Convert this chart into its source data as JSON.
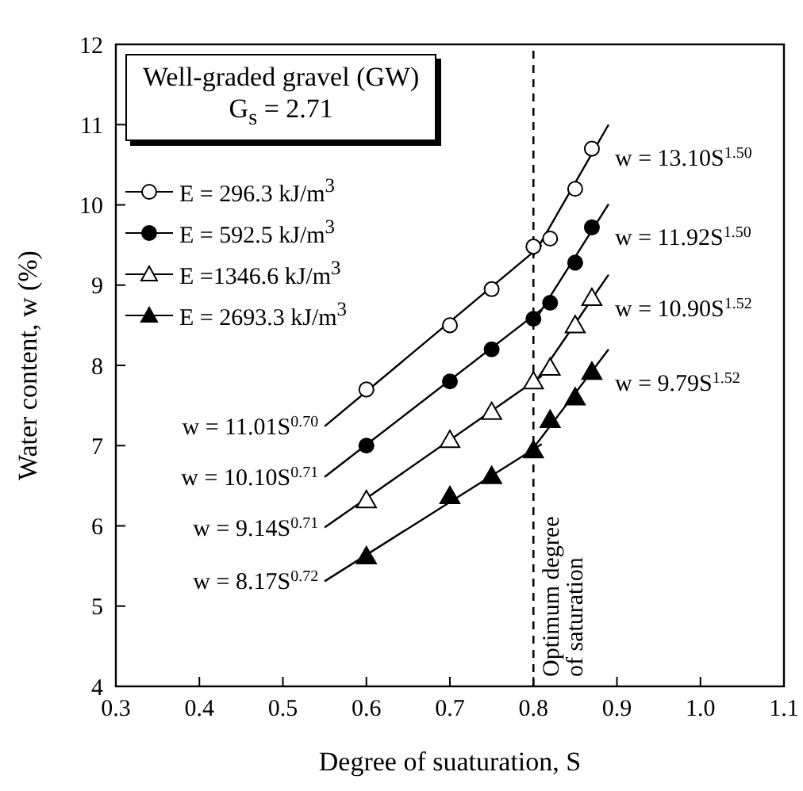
{
  "chart_data": {
    "type": "scatter",
    "title": "Well-graded gravel (GW)",
    "subtitle": "G$_{s}$ = 2.71",
    "xlabel": "Degree of suaturation, S",
    "ylabel": "Water content, w (%)",
    "xlim": [
      0.3,
      1.1
    ],
    "xticks": [
      {
        "value": 0.3,
        "label": "0.3"
      },
      {
        "value": 0.4,
        "label": "0.4"
      },
      {
        "value": 0.5,
        "label": "0.5"
      },
      {
        "value": 0.6,
        "label": "0.6"
      },
      {
        "value": 0.7,
        "label": "0.7"
      },
      {
        "value": 0.8,
        "label": "0.8"
      },
      {
        "value": 0.9,
        "label": "0.9"
      },
      {
        "value": 1.0,
        "label": "1.0"
      },
      {
        "value": 1.1,
        "label": "1.1"
      }
    ],
    "ylim": [
      4,
      12
    ],
    "yticks": [
      4,
      5,
      6,
      7,
      8,
      9,
      10,
      11,
      12
    ],
    "x": [
      0.6,
      0.7,
      0.75,
      0.8,
      0.82,
      0.85,
      0.87
    ],
    "legend": "top left",
    "series": [
      {
        "name": "E = 296.3 kJ/m$^{3}$",
        "color": "#ffffff",
        "marker": "circle",
        "values": [
          7.7,
          8.5,
          8.95,
          9.48,
          9.58,
          10.2,
          10.7
        ]
      },
      {
        "name": "E = 592.5 kJ/m$^{3}$",
        "color": "#000000",
        "marker": "circle",
        "values": [
          7.0,
          7.8,
          8.2,
          8.58,
          8.78,
          9.28,
          9.72
        ]
      },
      {
        "name": "E =1346.6 kJ/m$^{3}$",
        "color": "#ffffff",
        "marker": "triangle",
        "values": [
          6.3,
          7.05,
          7.4,
          7.78,
          7.95,
          8.48,
          8.82
        ]
      },
      {
        "name": "E = 2693.3 kJ/m$^{3}$",
        "color": "#000000",
        "marker": "triangle",
        "values": [
          5.6,
          6.35,
          6.6,
          6.92,
          7.3,
          7.58,
          7.9
        ]
      },
      {
        "name": "w = 11.01S$^{0.70}$",
        "type": "line",
        "color": "#000000",
        "marker": "none",
        "x": [
          0.55,
          0.81
        ],
        "values": [
          7.24,
          9.5
        ]
      },
      {
        "name": "w = 10.10S$^{0.71}$",
        "type": "line",
        "color": "#000000",
        "marker": "none",
        "x": [
          0.55,
          0.81
        ],
        "values": [
          6.61,
          8.7
        ]
      },
      {
        "name": "w = 9.14S$^{0.71}$",
        "type": "line",
        "color": "#000000",
        "marker": "none",
        "x": [
          0.55,
          0.81
        ],
        "values": [
          5.98,
          7.87
        ]
      },
      {
        "name": "w = 8.17S$^{0.72}$",
        "type": "line",
        "color": "#000000",
        "marker": "none",
        "x": [
          0.55,
          0.81
        ],
        "values": [
          5.31,
          7.02
        ]
      },
      {
        "name": "w = 13.10S$^{1.50}$",
        "type": "line",
        "color": "#000000",
        "marker": "none",
        "x": [
          0.8,
          0.89
        ],
        "values": [
          9.37,
          11.0
        ]
      },
      {
        "name": "w = 11.92S$^{1.50}$",
        "type": "line",
        "color": "#000000",
        "marker": "none",
        "x": [
          0.8,
          0.89
        ],
        "values": [
          8.53,
          10.01
        ]
      },
      {
        "name": "w = 10.90S$^{1.52}$",
        "type": "line",
        "color": "#000000",
        "marker": "none",
        "x": [
          0.8,
          0.89
        ],
        "values": [
          7.76,
          9.13
        ]
      },
      {
        "name": "w = 9.79S$^{1.52}$",
        "type": "line",
        "color": "#000000",
        "marker": "none",
        "x": [
          0.8,
          0.89
        ],
        "values": [
          6.97,
          8.2
        ]
      }
    ],
    "ref_lines": [
      {
        "axis": "x",
        "value": 0.8,
        "label": "Optimum degree of saturation",
        "line_style": "dashed",
        "color": "#000000"
      }
    ]
  }
}
